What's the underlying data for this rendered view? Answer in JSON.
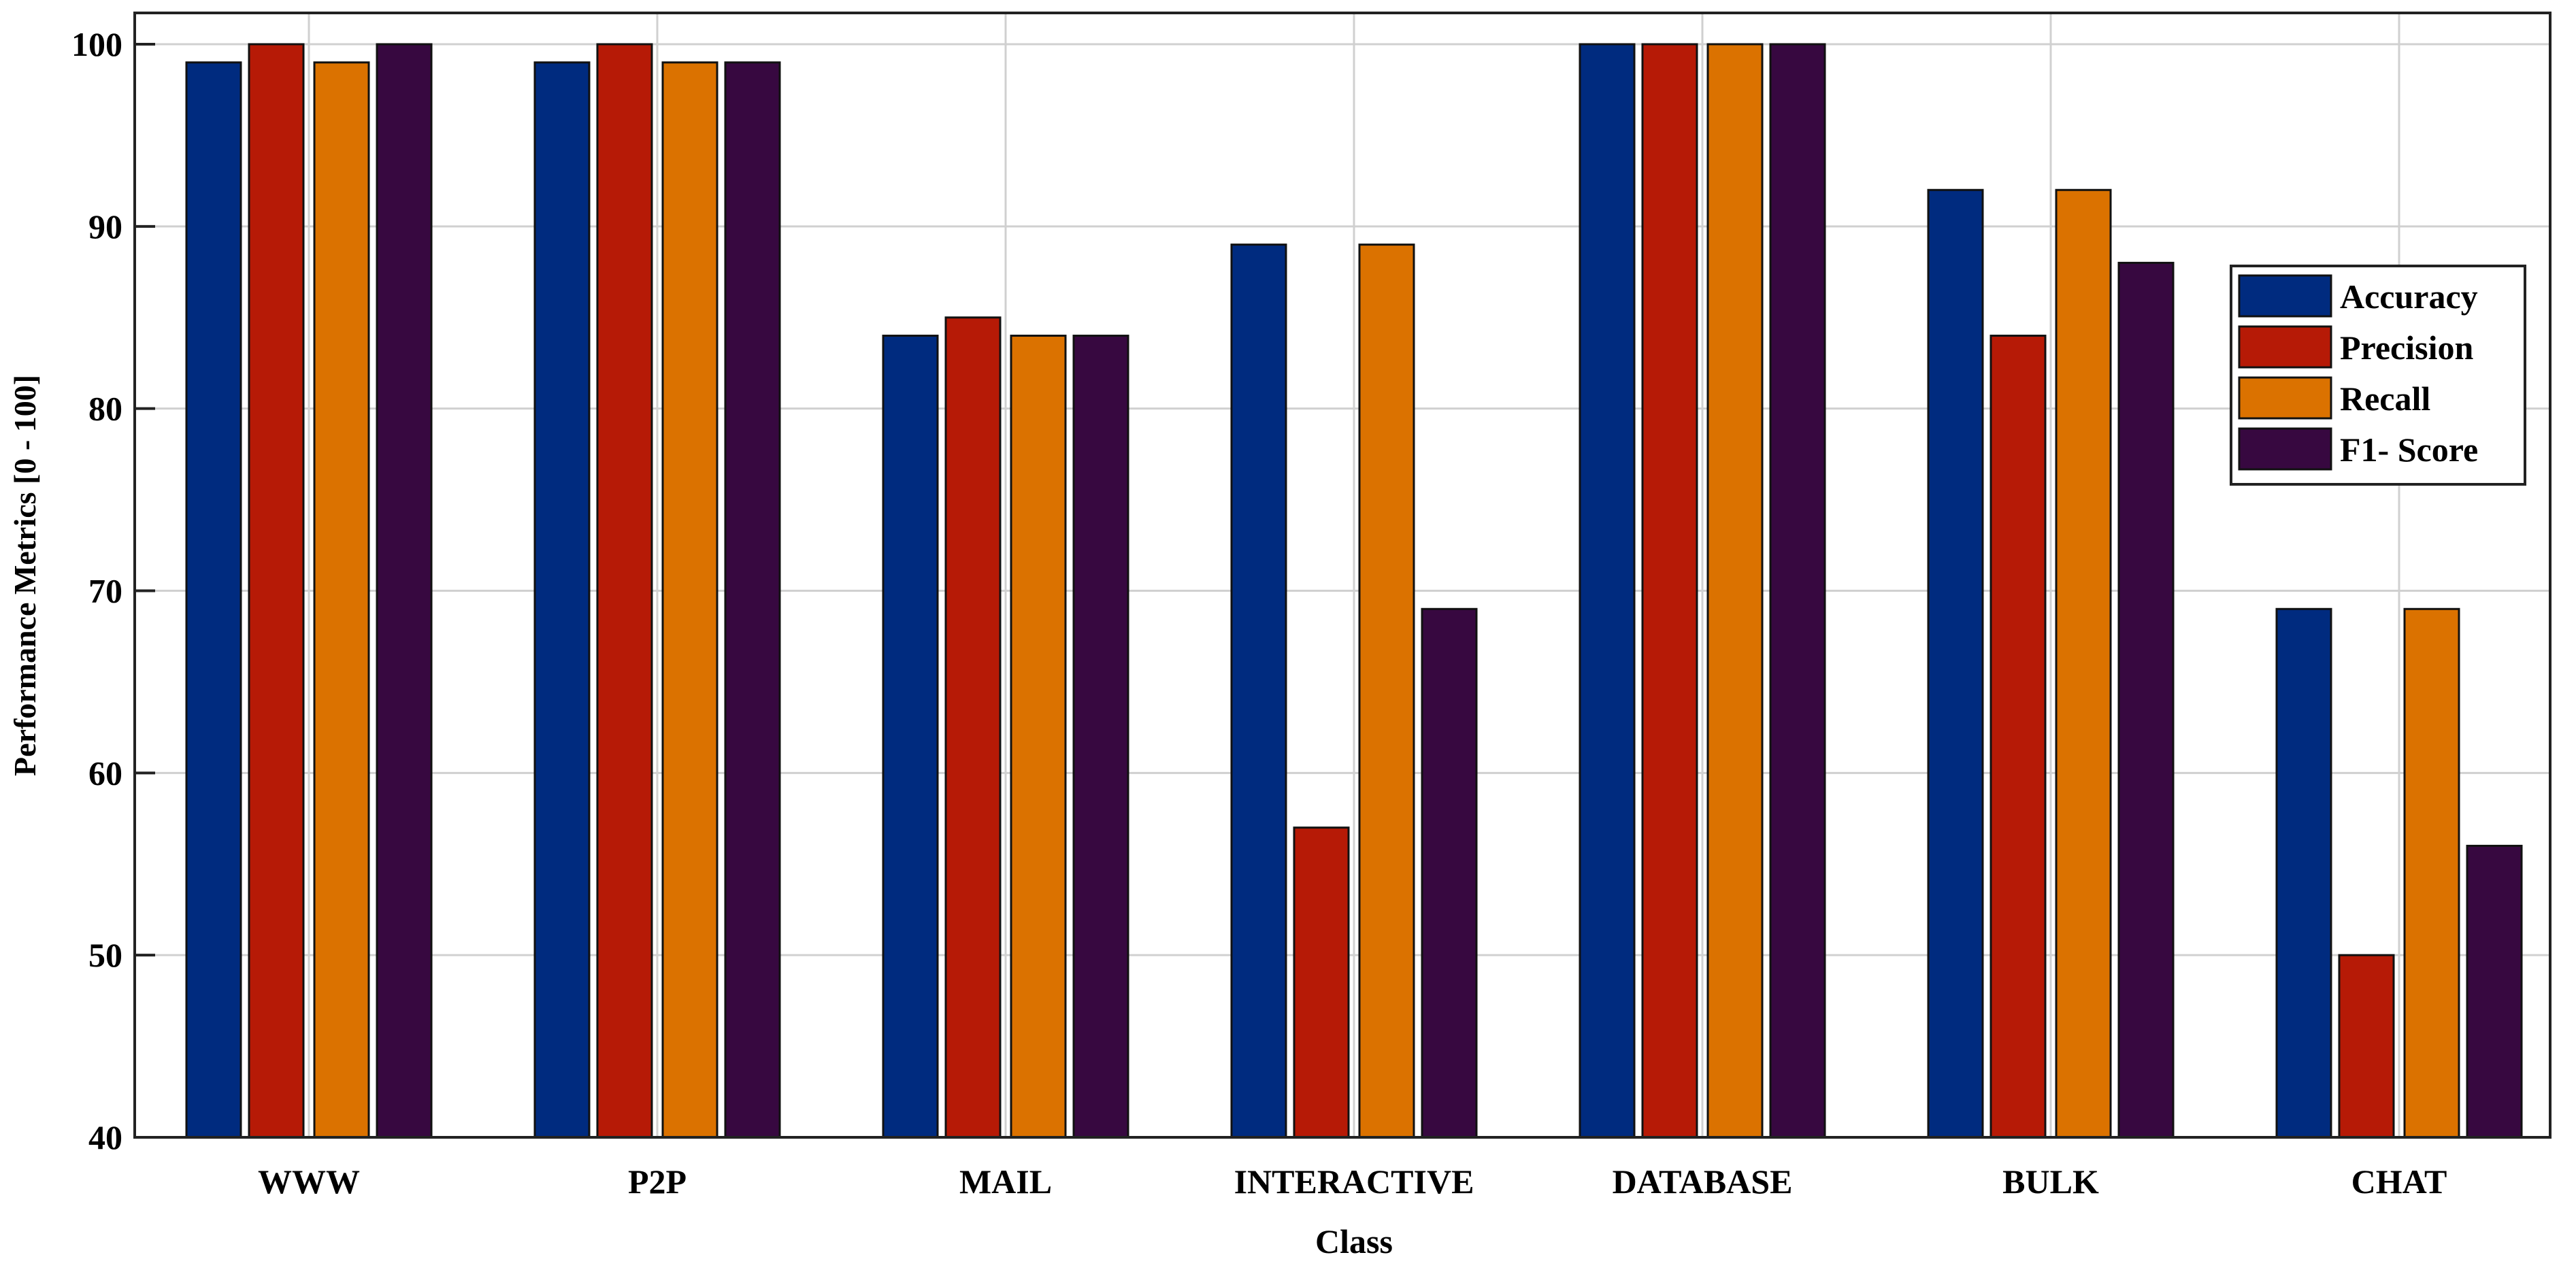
{
  "chart_data": {
    "type": "bar",
    "title": "",
    "xlabel": "Class",
    "ylabel": "Performance Metrics [0 - 100]",
    "ylim": [
      40,
      100
    ],
    "yticks": [
      40,
      50,
      60,
      70,
      80,
      90,
      100
    ],
    "grid": true,
    "legend_position": "right",
    "categories": [
      "WWW",
      "P2P",
      "MAIL",
      "INTERACTIVE",
      "DATABASE",
      "BULK",
      "CHAT"
    ],
    "series": [
      {
        "name": "Accuracy",
        "color": "#002b7f",
        "values": [
          99,
          99,
          84,
          89,
          100,
          92,
          69
        ]
      },
      {
        "name": "Precision",
        "color": "#b61a06",
        "values": [
          100,
          100,
          85,
          57,
          100,
          84,
          50
        ]
      },
      {
        "name": "Recall",
        "color": "#db7200",
        "values": [
          99,
          99,
          84,
          89,
          100,
          92,
          69
        ]
      },
      {
        "name": "F1- Score",
        "color": "#370840",
        "values": [
          100,
          99,
          84,
          69,
          100,
          88,
          56
        ]
      }
    ]
  }
}
